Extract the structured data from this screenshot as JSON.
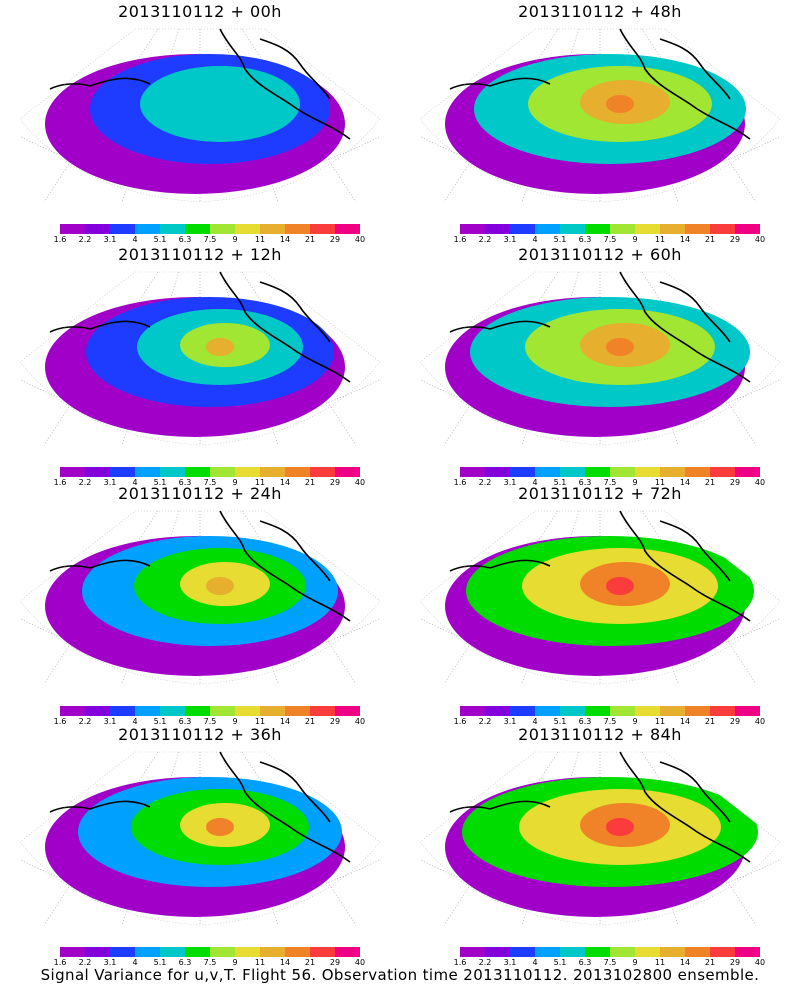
{
  "footer_text": "Signal Variance for u,v,T. Flight 56. Observation time 2013110112. 2013102800 ensemble.",
  "colorbar": {
    "colors": [
      "#a000c8",
      "#8200dc",
      "#1e3cff",
      "#00a0ff",
      "#00c8c8",
      "#00dc00",
      "#a0e632",
      "#e6dc32",
      "#e6af2d",
      "#f08228",
      "#fa3c3c",
      "#f00082"
    ],
    "labels": [
      "1.6",
      "2.2",
      "3.1",
      "4",
      "5.1",
      "6.3",
      "7.5",
      "9",
      "11",
      "14",
      "21",
      "29",
      "40"
    ]
  },
  "panels": [
    {
      "title": "2013110112 + 00h",
      "level": 0
    },
    {
      "title": "2013110112 + 48h",
      "level": 4
    },
    {
      "title": "2013110112 + 12h",
      "level": 1
    },
    {
      "title": "2013110112 + 60h",
      "level": 5
    },
    {
      "title": "2013110112 + 24h",
      "level": 2
    },
    {
      "title": "2013110112 + 72h",
      "level": 6
    },
    {
      "title": "2013110112 + 36h",
      "level": 3
    },
    {
      "title": "2013110112 + 84h",
      "level": 7
    }
  ]
}
